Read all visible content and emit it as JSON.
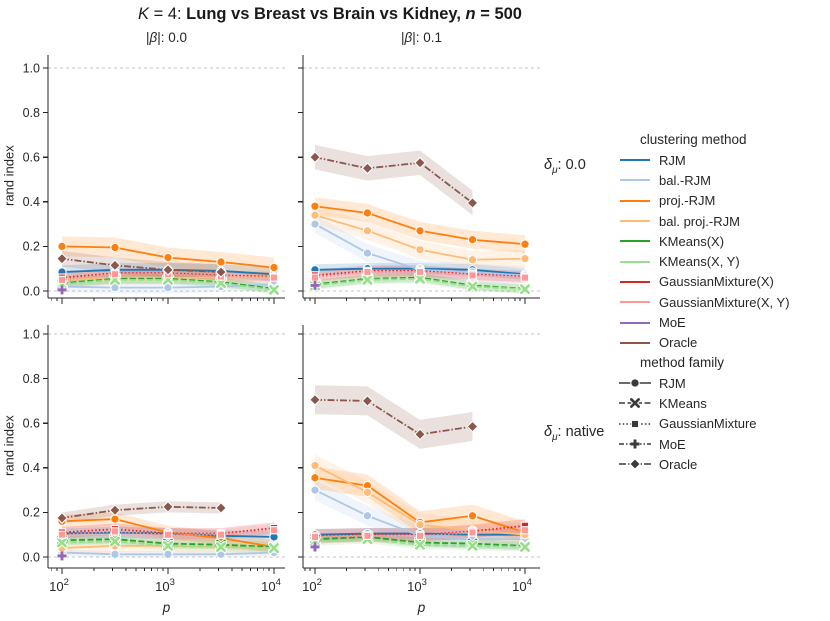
{
  "title": {
    "k": "K",
    "mid": " = 4: ",
    "main": "Lung vs Breast vs Brain vs Kidney, ",
    "n": "n",
    "tail": " = 500"
  },
  "col_headers": [
    {
      "pre": "|",
      "sym": "β",
      "post": "|: 0.0"
    },
    {
      "pre": "|",
      "sym": "β",
      "post": "|: 0.1"
    }
  ],
  "row_labels": [
    {
      "sym": "δ",
      "sub": "μ",
      "post": ": 0.0"
    },
    {
      "sym": "δ",
      "sub": "μ",
      "post": ": native"
    }
  ],
  "ylabel": "rand index",
  "xlabel": "p",
  "legend": {
    "group1_title": "clustering method",
    "group2_title": "method family"
  },
  "chart_data": {
    "type": "line",
    "x": [
      100,
      316,
      1000,
      3162,
      10000
    ],
    "xscale": "log",
    "xlabel": "p",
    "ylabel": "rand index",
    "ylim": [
      0,
      1
    ],
    "y_ticks": [
      0,
      0.2,
      0.4,
      0.6,
      0.8,
      1
    ],
    "x_ticks": [
      100,
      1000,
      10000
    ],
    "gridlines": [
      0,
      1
    ],
    "grid_color": "#c4c4c4",
    "axis_color": "#262626",
    "methods": [
      {
        "label": "RJM",
        "color": "#1f77b4",
        "family": "RJM"
      },
      {
        "label": "bal.-RJM",
        "color": "#aec7e8",
        "family": "RJM"
      },
      {
        "label": "proj.-RJM",
        "color": "#ff7f0e",
        "family": "RJM"
      },
      {
        "label": "bal. proj.-RJM",
        "color": "#ffbb78",
        "family": "RJM"
      },
      {
        "label": "KMeans(X)",
        "color": "#2ca02c",
        "family": "KMeans"
      },
      {
        "label": "KMeans(X, Y)",
        "color": "#98df8a",
        "family": "KMeans"
      },
      {
        "label": "GaussianMixture(X)",
        "color": "#d62728",
        "family": "GaussianMixture"
      },
      {
        "label": "GaussianMixture(X, Y)",
        "color": "#ff9896",
        "family": "GaussianMixture"
      },
      {
        "label": "MoE",
        "color": "#9467bd",
        "family": "MoE"
      },
      {
        "label": "Oracle",
        "color": "#8c564b",
        "family": "Oracle"
      }
    ],
    "families": [
      {
        "label": "RJM",
        "marker": "circle",
        "dash": ""
      },
      {
        "label": "KMeans",
        "marker": "x",
        "dash": "6,2.5"
      },
      {
        "label": "GaussianMixture",
        "marker": "square",
        "dash": "1.5,2.2"
      },
      {
        "label": "MoE",
        "marker": "plus",
        "dash": "5,2,1.5,2,1.5,2"
      },
      {
        "label": "Oracle",
        "marker": "diamond",
        "dash": "7,2,1.5,2"
      }
    ],
    "subplots": [
      {
        "beta": "0.0",
        "delta": "0.0",
        "series": [
          {
            "name": "RJM",
            "values": [
              0.085,
              0.095,
              0.095,
              0.09,
              0.075
            ],
            "band": 0.03
          },
          {
            "name": "bal.-RJM",
            "values": [
              0.02,
              0.015,
              0.015,
              0.02,
              0.03
            ],
            "band": 0.025
          },
          {
            "name": "proj.-RJM",
            "values": [
              0.2,
              0.195,
              0.15,
              0.13,
              0.105
            ],
            "band": 0.045
          },
          {
            "name": "bal. proj.-RJM",
            "values": [
              0.05,
              0.06,
              0.06,
              0.06,
              0.065
            ],
            "band": 0.03
          },
          {
            "name": "KMeans(X)",
            "values": [
              0.035,
              0.055,
              0.055,
              0.04,
              0.01
            ],
            "band": 0.02
          },
          {
            "name": "KMeans(X, Y)",
            "values": [
              0.03,
              0.05,
              0.05,
              0.035,
              0.005
            ],
            "band": 0.02
          },
          {
            "name": "GaussianMixture(X)",
            "values": [
              0.06,
              0.08,
              0.08,
              0.07,
              0.065
            ],
            "band": 0.02
          },
          {
            "name": "GaussianMixture(X, Y)",
            "values": [
              0.05,
              0.075,
              0.075,
              0.065,
              0.06
            ],
            "band": 0.02
          },
          {
            "name": "MoE",
            "values": [
              0.005
            ],
            "band": 0.01
          },
          {
            "name": "Oracle",
            "values": [
              0.145,
              0.115,
              0.095,
              0.085
            ],
            "band": 0.035
          }
        ]
      },
      {
        "beta": "0.1",
        "delta": "0.0",
        "series": [
          {
            "name": "RJM",
            "values": [
              0.095,
              0.1,
              0.1,
              0.095,
              0.075
            ],
            "band": 0.025
          },
          {
            "name": "bal.-RJM",
            "values": [
              0.3,
              0.17,
              0.095,
              0.085,
              0.07
            ],
            "band": 0.04
          },
          {
            "name": "proj.-RJM",
            "values": [
              0.38,
              0.35,
              0.27,
              0.23,
              0.21
            ],
            "band": 0.04
          },
          {
            "name": "bal. proj.-RJM",
            "values": [
              0.34,
              0.27,
              0.185,
              0.14,
              0.145
            ],
            "band": 0.04
          },
          {
            "name": "KMeans(X)",
            "values": [
              0.03,
              0.055,
              0.06,
              0.025,
              0.01
            ],
            "band": 0.02
          },
          {
            "name": "KMeans(X, Y)",
            "values": [
              0.025,
              0.05,
              0.055,
              0.02,
              0.008
            ],
            "band": 0.02
          },
          {
            "name": "GaussianMixture(X)",
            "values": [
              0.07,
              0.09,
              0.09,
              0.075,
              0.065
            ],
            "band": 0.025
          },
          {
            "name": "GaussianMixture(X, Y)",
            "values": [
              0.06,
              0.085,
              0.085,
              0.07,
              0.06
            ],
            "band": 0.025
          },
          {
            "name": "MoE",
            "values": [
              0.025
            ],
            "band": 0.01
          },
          {
            "name": "Oracle",
            "values": [
              0.6,
              0.55,
              0.575,
              0.395
            ],
            "band": 0.055
          }
        ]
      },
      {
        "beta": "0.0",
        "delta": "native",
        "series": [
          {
            "name": "RJM",
            "values": [
              0.105,
              0.11,
              0.105,
              0.095,
              0.09
            ],
            "band": 0.025
          },
          {
            "name": "bal.-RJM",
            "values": [
              0.02,
              0.012,
              0.012,
              0.012,
              0.02
            ],
            "band": 0.015
          },
          {
            "name": "proj.-RJM",
            "values": [
              0.16,
              0.17,
              0.11,
              0.085,
              0.045
            ],
            "band": 0.03
          },
          {
            "name": "bal. proj.-RJM",
            "values": [
              0.04,
              0.05,
              0.05,
              0.045,
              0.04
            ],
            "band": 0.03
          },
          {
            "name": "KMeans(X)",
            "values": [
              0.075,
              0.08,
              0.06,
              0.055,
              0.045
            ],
            "band": 0.02
          },
          {
            "name": "KMeans(X, Y)",
            "values": [
              0.065,
              0.07,
              0.05,
              0.045,
              0.04
            ],
            "band": 0.02
          },
          {
            "name": "GaussianMixture(X)",
            "values": [
              0.11,
              0.125,
              0.105,
              0.105,
              0.13
            ],
            "band": 0.025
          },
          {
            "name": "GaussianMixture(X, Y)",
            "values": [
              0.1,
              0.115,
              0.1,
              0.1,
              0.12
            ],
            "band": 0.025
          },
          {
            "name": "MoE",
            "values": [
              0.005
            ],
            "band": 0.01
          },
          {
            "name": "Oracle",
            "values": [
              0.175,
              0.21,
              0.225,
              0.22
            ],
            "band": 0.025
          }
        ]
      },
      {
        "beta": "0.1",
        "delta": "native",
        "series": [
          {
            "name": "RJM",
            "values": [
              0.1,
              0.105,
              0.105,
              0.1,
              0.1
            ],
            "band": 0.025
          },
          {
            "name": "bal.-RJM",
            "values": [
              0.3,
              0.185,
              0.095,
              0.08,
              0.08
            ],
            "band": 0.045
          },
          {
            "name": "proj.-RJM",
            "values": [
              0.355,
              0.32,
              0.155,
              0.185,
              0.11
            ],
            "band": 0.05
          },
          {
            "name": "bal. proj.-RJM",
            "values": [
              0.41,
              0.29,
              0.145,
              0.12,
              0.1
            ],
            "band": 0.05
          },
          {
            "name": "KMeans(X)",
            "values": [
              0.08,
              0.09,
              0.065,
              0.06,
              0.05
            ],
            "band": 0.02
          },
          {
            "name": "KMeans(X, Y)",
            "values": [
              0.07,
              0.08,
              0.055,
              0.05,
              0.045
            ],
            "band": 0.02
          },
          {
            "name": "GaussianMixture(X)",
            "values": [
              0.095,
              0.1,
              0.1,
              0.115,
              0.14
            ],
            "band": 0.03
          },
          {
            "name": "GaussianMixture(X, Y)",
            "values": [
              0.09,
              0.095,
              0.095,
              0.11,
              0.12
            ],
            "band": 0.03
          },
          {
            "name": "MoE",
            "values": [
              0.045
            ],
            "band": 0.01
          },
          {
            "name": "Oracle",
            "values": [
              0.705,
              0.7,
              0.55,
              0.585
            ],
            "band": 0.065
          }
        ]
      }
    ]
  }
}
